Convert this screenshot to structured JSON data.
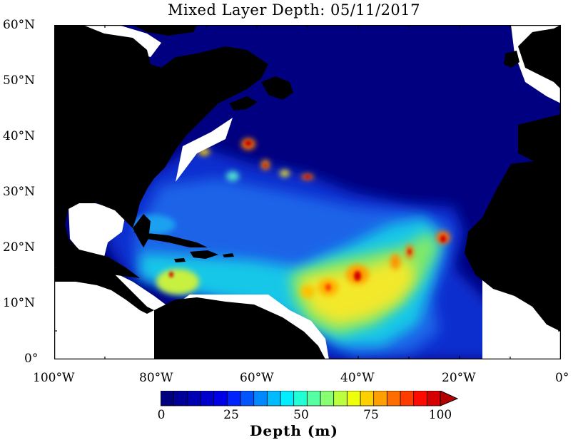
{
  "title": "Mixed Layer Depth: 05/11/2017",
  "axes": {
    "lat_labels": [
      "60°N",
      "50°N",
      "40°N",
      "30°N",
      "20°N",
      "10°N",
      "0°"
    ],
    "lon_labels": [
      "100°W",
      "80°W",
      "60°W",
      "40°W",
      "20°W",
      "0°"
    ]
  },
  "colorbar": {
    "title": "Depth (m)",
    "tick_labels": [
      "0",
      "25",
      "50",
      "75",
      "100"
    ],
    "colors": [
      "#00007f",
      "#000099",
      "#0000b3",
      "#0000cc",
      "#0000e6",
      "#0022ff",
      "#0055ff",
      "#0088ff",
      "#00bbff",
      "#00eeff",
      "#22ffd4",
      "#55ffa2",
      "#88ff70",
      "#bbff3e",
      "#eeff0c",
      "#ffd000",
      "#ff9f00",
      "#ff6d00",
      "#ff3b00",
      "#ff0a00",
      "#d50000",
      "#b30000"
    ]
  },
  "palette": {
    "ocean_deep": "#000080",
    "land": "#000000",
    "no_data": "#ffffff"
  }
}
